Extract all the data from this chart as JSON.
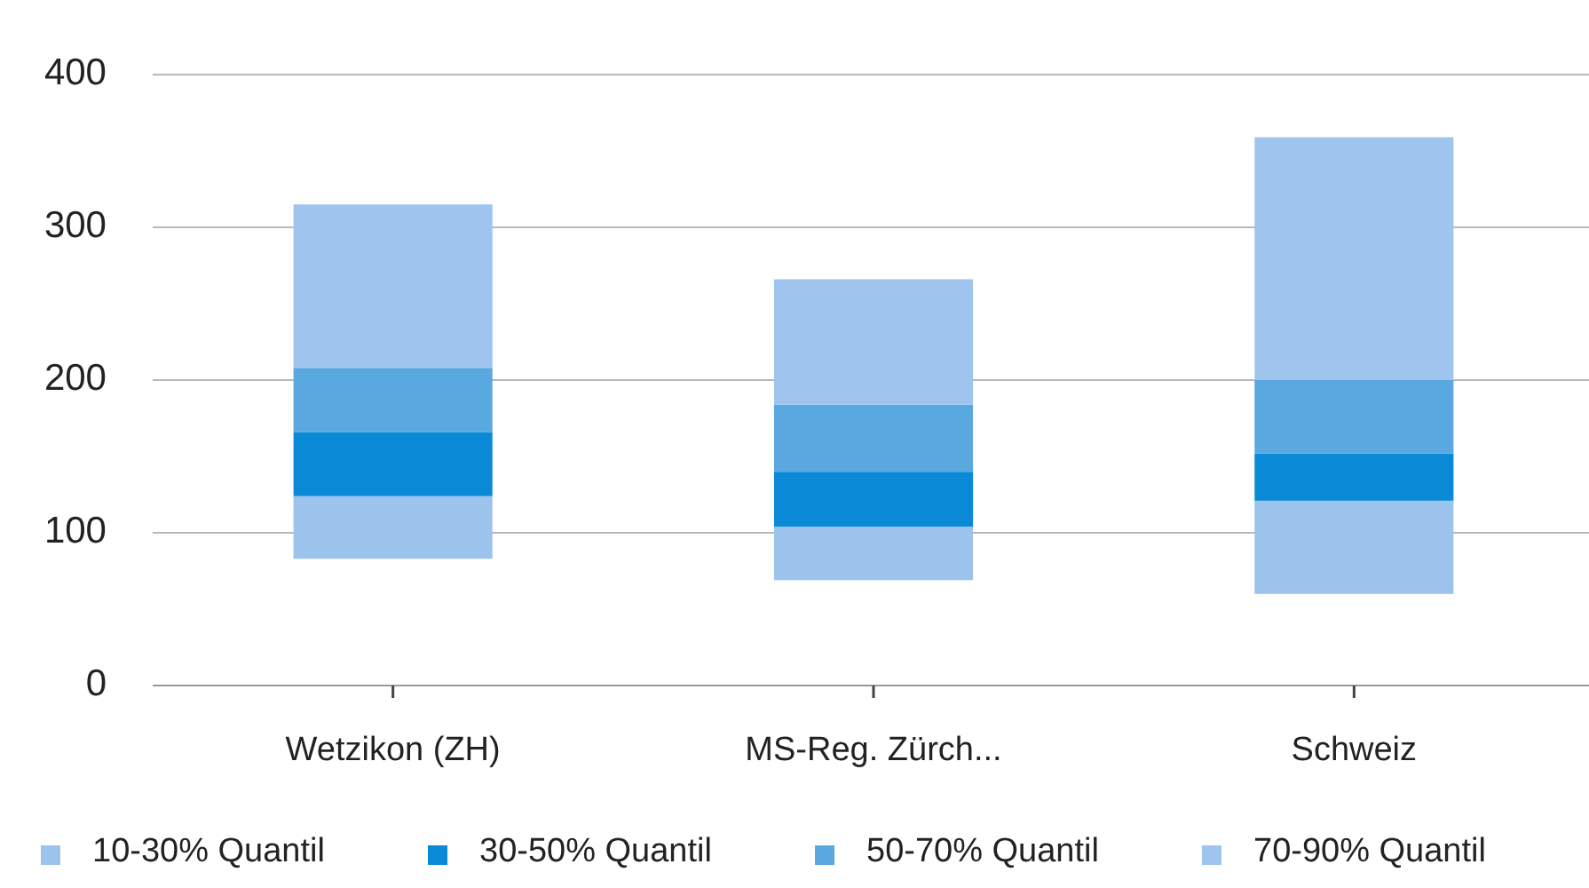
{
  "chart_data": {
    "type": "bar",
    "categories": [
      "Wetzikon (ZH)",
      "MS-Reg. Zürch...",
      "Schweiz"
    ],
    "series": [
      {
        "name": "10-30% Quantil",
        "color": "#9cc3ec",
        "base": [
          83,
          69,
          60
        ],
        "values": [
          41,
          35,
          61
        ]
      },
      {
        "name": "30-50% Quantil",
        "color": "#0a8ad6",
        "base": [
          124,
          104,
          121
        ],
        "values": [
          42,
          36,
          31
        ]
      },
      {
        "name": "50-70% Quantil",
        "color": "#5aa8e0",
        "base": [
          166,
          140,
          152
        ],
        "values": [
          42,
          44,
          48
        ]
      },
      {
        "name": "70-90% Quantil",
        "color": "#9fc5ee",
        "base": [
          208,
          184,
          200
        ],
        "values": [
          107,
          82,
          159
        ]
      }
    ],
    "ylim": [
      0,
      400
    ],
    "yticks": [
      0,
      100,
      200,
      300,
      400
    ],
    "grid": "y",
    "legend": "bottom"
  }
}
